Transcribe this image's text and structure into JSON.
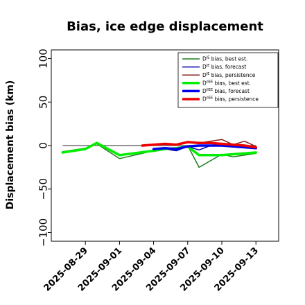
{
  "chart_data": {
    "type": "line",
    "title": "Bias, ice edge displacement",
    "ylabel": "Displacement bias (km)",
    "xlabel": "",
    "ylim": [
      -110,
      110
    ],
    "xlim": [
      "2025-08-26",
      "2025-09-15"
    ],
    "yticks": [
      100,
      50,
      0,
      -50,
      -100
    ],
    "yticks_labels": [
      "100",
      "50",
      "0",
      "−50",
      "−100"
    ],
    "xticks": [
      "2025-08-29",
      "2025-09-01",
      "2025-09-04",
      "2025-09-07",
      "2025-09-10",
      "2025-09-13"
    ],
    "highlight_tick": "2025-09-04",
    "highlight_color": "#228b22",
    "zero_line": true,
    "grid": false,
    "legend_position": "top-right",
    "series": [
      {
        "name_main": "D",
        "name_sup": "IE",
        "name_rest": " bias, best est.",
        "color": "#1a7a1a",
        "width": 1.5,
        "points": [
          [
            "2025-08-27",
            -7
          ],
          [
            "2025-08-29",
            -3
          ],
          [
            "2025-08-30",
            2
          ],
          [
            "2025-09-01",
            -15
          ],
          [
            "2025-09-04",
            -6
          ],
          [
            "2025-09-05",
            -4
          ],
          [
            "2025-09-06",
            -3
          ],
          [
            "2025-09-07",
            0
          ],
          [
            "2025-09-08",
            -25
          ],
          [
            "2025-09-10",
            -10
          ],
          [
            "2025-09-11",
            -13
          ],
          [
            "2025-09-12",
            -11
          ],
          [
            "2025-09-13",
            -9
          ]
        ]
      },
      {
        "name_main": "D",
        "name_sup": "IE",
        "name_rest": " bias, forecast",
        "color": "#0000aa",
        "width": 1.5,
        "points": [
          [
            "2025-09-04",
            -5
          ],
          [
            "2025-09-05",
            -4
          ],
          [
            "2025-09-06",
            -6
          ],
          [
            "2025-09-07",
            -1
          ],
          [
            "2025-09-08",
            -5
          ],
          [
            "2025-09-09",
            0
          ],
          [
            "2025-09-10",
            1
          ],
          [
            "2025-09-11",
            0
          ],
          [
            "2025-09-12",
            -1
          ],
          [
            "2025-09-13",
            -2
          ]
        ]
      },
      {
        "name_main": "D",
        "name_sup": "IE",
        "name_rest": " bias, persistence",
        "color": "#8b1a1a",
        "width": 1.5,
        "points": [
          [
            "2025-09-04",
            0
          ],
          [
            "2025-09-05",
            2
          ],
          [
            "2025-09-06",
            1
          ],
          [
            "2025-09-07",
            4
          ],
          [
            "2025-09-08",
            3
          ],
          [
            "2025-09-09",
            5
          ],
          [
            "2025-09-10",
            7
          ],
          [
            "2025-09-11",
            1
          ],
          [
            "2025-09-12",
            5
          ],
          [
            "2025-09-13",
            -1
          ]
        ]
      },
      {
        "name_main": "D",
        "name_sup": "IIEE",
        "name_rest": " bias, best est.",
        "color": "#00ee00",
        "width": 3.5,
        "points": [
          [
            "2025-08-27",
            -8
          ],
          [
            "2025-08-29",
            -4
          ],
          [
            "2025-08-30",
            3
          ],
          [
            "2025-09-01",
            -11
          ],
          [
            "2025-09-04",
            -6
          ],
          [
            "2025-09-05",
            -4
          ],
          [
            "2025-09-06",
            -3
          ],
          [
            "2025-09-07",
            -1
          ],
          [
            "2025-09-08",
            -11
          ],
          [
            "2025-09-10",
            -11
          ],
          [
            "2025-09-11",
            -10
          ],
          [
            "2025-09-13",
            -8
          ]
        ]
      },
      {
        "name_main": "D",
        "name_sup": "IIEE",
        "name_rest": " bias, forecast",
        "color": "#0000ee",
        "width": 3.5,
        "points": [
          [
            "2025-09-04",
            -4
          ],
          [
            "2025-09-05",
            -3
          ],
          [
            "2025-09-06",
            -4
          ],
          [
            "2025-09-07",
            -1
          ],
          [
            "2025-09-08",
            0
          ],
          [
            "2025-09-09",
            0
          ],
          [
            "2025-09-10",
            0
          ],
          [
            "2025-09-11",
            -1
          ],
          [
            "2025-09-12",
            -2
          ],
          [
            "2025-09-13",
            -3
          ]
        ]
      },
      {
        "name_main": "D",
        "name_sup": "IIEE",
        "name_rest": " bias, persistence",
        "color": "#ee0000",
        "width": 3.5,
        "points": [
          [
            "2025-09-03",
            0
          ],
          [
            "2025-09-04",
            1
          ],
          [
            "2025-09-05",
            2
          ],
          [
            "2025-09-06",
            1
          ],
          [
            "2025-09-07",
            4
          ],
          [
            "2025-09-08",
            3
          ],
          [
            "2025-09-09",
            3
          ],
          [
            "2025-09-10",
            2
          ],
          [
            "2025-09-11",
            1
          ],
          [
            "2025-09-12",
            0
          ],
          [
            "2025-09-13",
            -2
          ]
        ]
      }
    ]
  }
}
